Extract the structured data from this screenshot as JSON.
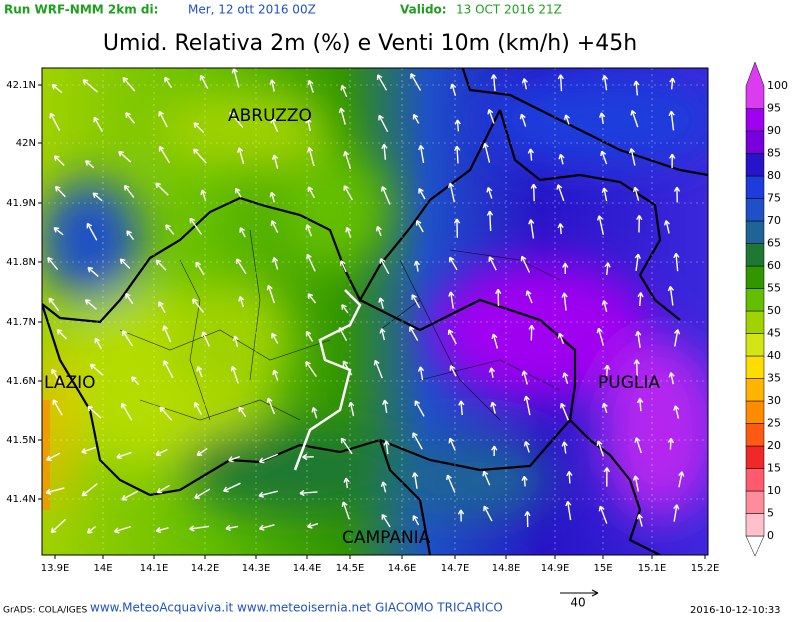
{
  "header": {
    "run_label": "Run WRF-NMM 2km di:",
    "run_date": "Mer, 12 ott 2016 00Z",
    "valid_label": "Valido:",
    "valid_date": "13 OCT 2016 21Z"
  },
  "title": "Umid. Relativa 2m (%) e Venti 10m (km/h) +45h",
  "axes": {
    "lat_labels": [
      "42.1N",
      "42N",
      "41.9N",
      "41.8N",
      "41.7N",
      "41.6N",
      "41.5N",
      "41.4N"
    ],
    "lon_labels": [
      "13.9E",
      "14E",
      "14.1E",
      "14.2E",
      "14.3E",
      "14.4E",
      "14.5E",
      "14.6E",
      "14.7E",
      "14.8E",
      "14.9E",
      "15E",
      "15.1E",
      "15.2E"
    ]
  },
  "regions": [
    {
      "label": "ABRUZZO"
    },
    {
      "label": "LAZIO"
    },
    {
      "label": "PUGLIA"
    },
    {
      "label": "CAMPANIA"
    }
  ],
  "colorbar": {
    "levels": [
      0,
      5,
      10,
      15,
      20,
      25,
      30,
      35,
      40,
      45,
      50,
      55,
      60,
      65,
      70,
      75,
      80,
      85,
      90,
      95,
      100
    ],
    "colors": [
      "#ffffff",
      "#ffc0cb",
      "#ff8c9a",
      "#ff5a6e",
      "#f02828",
      "#ff5a14",
      "#ff8c00",
      "#ffb400",
      "#ffdc00",
      "#d2e614",
      "#a0d200",
      "#64be00",
      "#329600",
      "#1e7832",
      "#1e6496",
      "#1e50c8",
      "#1e3cdc",
      "#2814c8",
      "#7800dc",
      "#a000f0",
      "#dc3cf0"
    ]
  },
  "footer": {
    "grads": "GrADS: COLA/IGES",
    "credits": "www.MeteoAcquaviva.it www.meteoisernia.net GIACOMO TRICARICO",
    "scale_label": "40",
    "timestamp": "2016-10-12-10:33"
  }
}
